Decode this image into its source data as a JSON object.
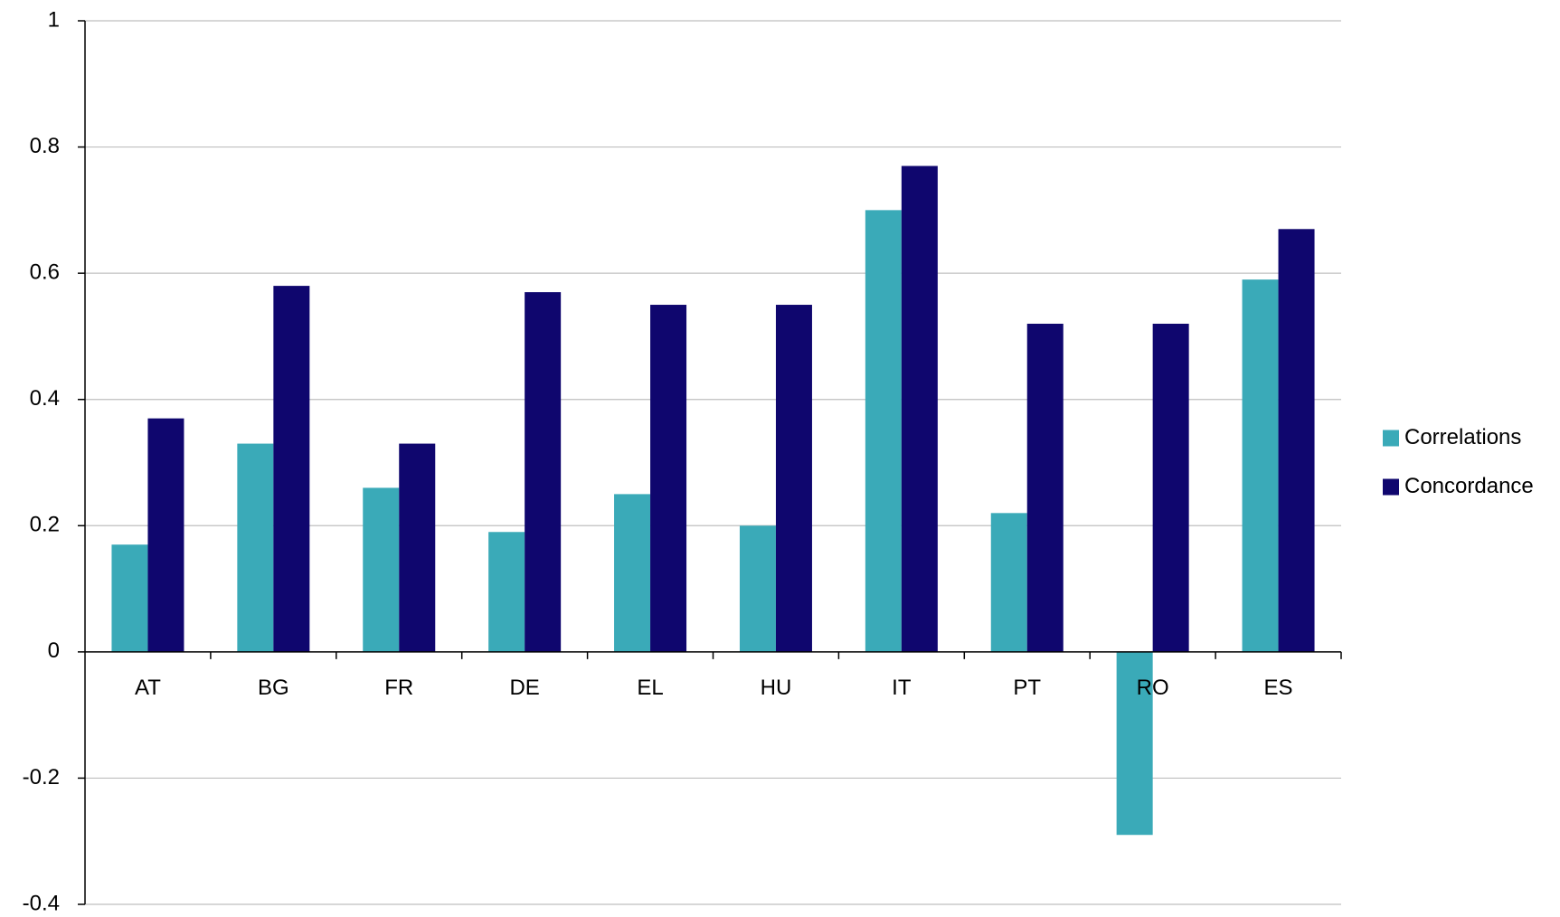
{
  "chart_data": {
    "type": "bar",
    "categories": [
      "AT",
      "BG",
      "FR",
      "DE",
      "EL",
      "HU",
      "IT",
      "PT",
      "RO",
      "ES"
    ],
    "series": [
      {
        "name": "Correlations",
        "color": "#3aaab8",
        "values": [
          0.17,
          0.33,
          0.26,
          0.19,
          0.25,
          0.2,
          0.7,
          0.22,
          -0.29,
          0.59
        ]
      },
      {
        "name": "Concordance",
        "color": "#0f066e",
        "values": [
          0.37,
          0.58,
          0.33,
          0.57,
          0.55,
          0.55,
          0.77,
          0.52,
          0.52,
          0.67
        ]
      }
    ],
    "ylim": [
      -0.4,
      1
    ],
    "yticks": [
      -0.4,
      -0.2,
      0,
      0.2,
      0.4,
      0.6,
      0.8,
      1
    ],
    "grid": true,
    "legend": "right"
  }
}
